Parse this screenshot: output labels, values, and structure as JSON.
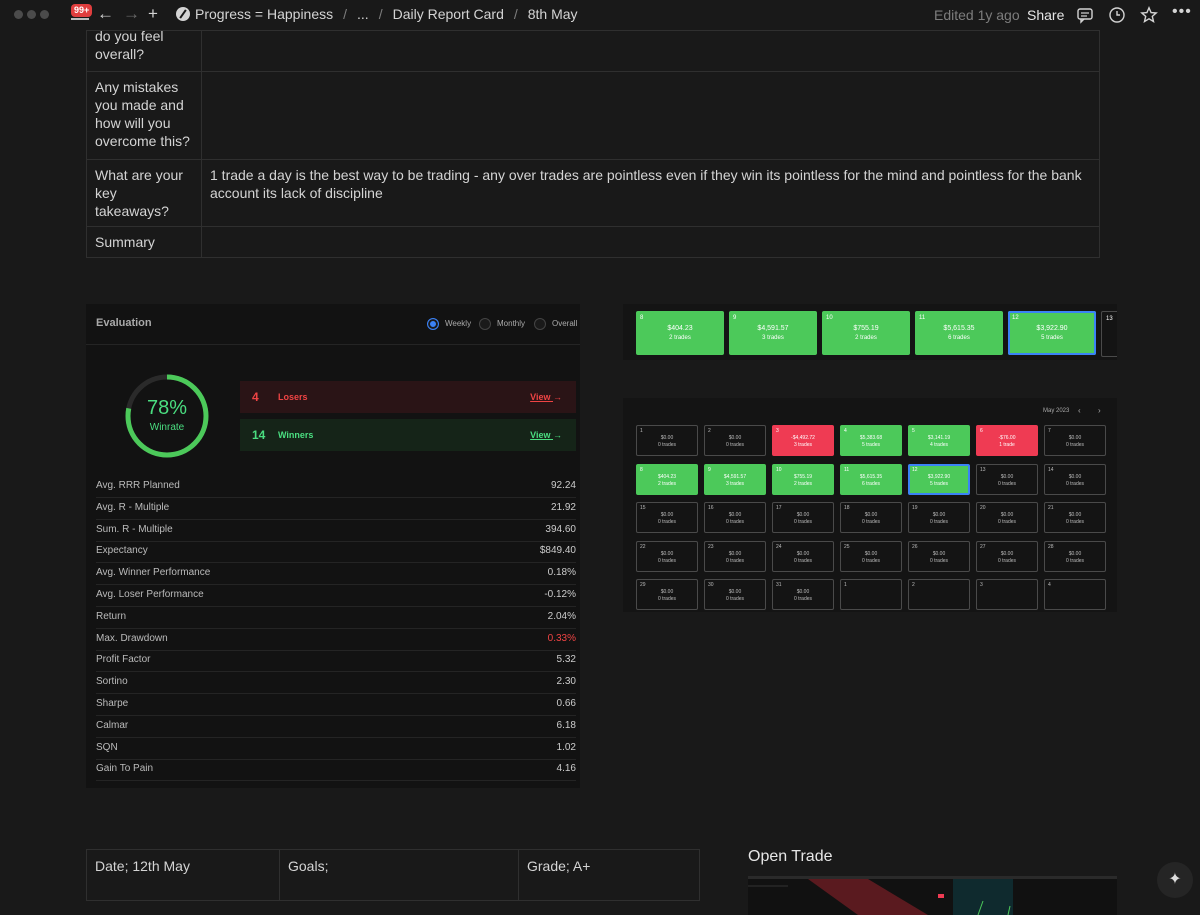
{
  "topbar": {
    "badge": "99+",
    "breadcrumbs": [
      "Progress = Happiness",
      "...",
      "Daily Report Card",
      "8th May"
    ],
    "edited": "Edited 1y ago",
    "share": "Share"
  },
  "report_rows": [
    {
      "q": "do you feel overall?",
      "a": ""
    },
    {
      "q": "Any mistakes you made and how will you overcome this?",
      "a": ""
    },
    {
      "q": "What are your key takeaways?",
      "a": "1 trade a day is the best way to be trading - any over trades are pointless even if they win its pointless for the mind and pointless for the bank account its lack of discipline"
    },
    {
      "q": "Summary",
      "a": ""
    }
  ],
  "evaluation": {
    "title": "Evaluation",
    "periods": [
      "Weekly",
      "Monthly",
      "Overall"
    ],
    "selected_period": "Weekly",
    "winrate_pct": "78%",
    "winrate_value": 0.78,
    "winrate_label": "Winrate",
    "losers": {
      "count": "4",
      "label": "Losers",
      "link": "View"
    },
    "winners": {
      "count": "14",
      "label": "Winners",
      "link": "View"
    },
    "metrics": [
      {
        "label": "Avg. RRR Planned",
        "value": "92.24"
      },
      {
        "label": "Avg. R - Multiple",
        "value": "21.92"
      },
      {
        "label": "Sum. R - Multiple",
        "value": "394.60"
      },
      {
        "label": "Expectancy",
        "value": "$849.40"
      },
      {
        "label": "Avg. Winner Performance",
        "value": "0.18%"
      },
      {
        "label": "Avg. Loser Performance",
        "value": "-0.12%"
      },
      {
        "label": "Return",
        "value": "2.04%"
      },
      {
        "label": "Max. Drawdown",
        "value": "0.33%",
        "color": "#ef4444"
      },
      {
        "label": "Profit Factor",
        "value": "5.32"
      },
      {
        "label": "Sortino",
        "value": "2.30"
      },
      {
        "label": "Sharpe",
        "value": "0.66"
      },
      {
        "label": "Calmar",
        "value": "6.18"
      },
      {
        "label": "SQN",
        "value": "1.02"
      },
      {
        "label": "Gain To Pain",
        "value": "4.16"
      }
    ]
  },
  "week_strip": [
    {
      "day": "8",
      "amount": "$404.23",
      "trades": "2 trades"
    },
    {
      "day": "9",
      "amount": "$4,591.57",
      "trades": "3 trades"
    },
    {
      "day": "10",
      "amount": "$755.19",
      "trades": "2 trades"
    },
    {
      "day": "11",
      "amount": "$5,615.35",
      "trades": "6 trades"
    },
    {
      "day": "12",
      "amount": "$3,922.90",
      "trades": "5 trades",
      "selected": true
    },
    {
      "day": "13",
      "amount": "",
      "trades": ""
    }
  ],
  "calendar": {
    "month": "May 2023",
    "cells": [
      {
        "day": "1",
        "amount": "$0.00",
        "trades": "0 trades",
        "kind": "empty"
      },
      {
        "day": "2",
        "amount": "$0.00",
        "trades": "0 trades",
        "kind": "empty"
      },
      {
        "day": "3",
        "amount": "-$4,492.72",
        "trades": "3 trades",
        "kind": "red"
      },
      {
        "day": "4",
        "amount": "$5,383.68",
        "trades": "5 trades",
        "kind": "green"
      },
      {
        "day": "5",
        "amount": "$3,141.19",
        "trades": "4 trades",
        "kind": "green"
      },
      {
        "day": "6",
        "amount": "-$76.00",
        "trades": "1 trade",
        "kind": "red"
      },
      {
        "day": "7",
        "amount": "$0.00",
        "trades": "0 trades",
        "kind": "empty"
      },
      {
        "day": "8",
        "amount": "$404.23",
        "trades": "2 trades",
        "kind": "green"
      },
      {
        "day": "9",
        "amount": "$4,591.57",
        "trades": "3 trades",
        "kind": "green"
      },
      {
        "day": "10",
        "amount": "$755.19",
        "trades": "2 trades",
        "kind": "green"
      },
      {
        "day": "11",
        "amount": "$5,615.35",
        "trades": "6 trades",
        "kind": "green"
      },
      {
        "day": "12",
        "amount": "$3,922.90",
        "trades": "5 trades",
        "kind": "green-sel"
      },
      {
        "day": "13",
        "amount": "$0.00",
        "trades": "0 trades",
        "kind": "empty"
      },
      {
        "day": "14",
        "amount": "$0.00",
        "trades": "0 trades",
        "kind": "empty"
      },
      {
        "day": "15",
        "amount": "$0.00",
        "trades": "0 trades",
        "kind": "empty"
      },
      {
        "day": "16",
        "amount": "$0.00",
        "trades": "0 trades",
        "kind": "empty"
      },
      {
        "day": "17",
        "amount": "$0.00",
        "trades": "0 trades",
        "kind": "empty"
      },
      {
        "day": "18",
        "amount": "$0.00",
        "trades": "0 trades",
        "kind": "empty"
      },
      {
        "day": "19",
        "amount": "$0.00",
        "trades": "0 trades",
        "kind": "empty"
      },
      {
        "day": "20",
        "amount": "$0.00",
        "trades": "0 trades",
        "kind": "empty"
      },
      {
        "day": "21",
        "amount": "$0.00",
        "trades": "0 trades",
        "kind": "empty"
      },
      {
        "day": "22",
        "amount": "$0.00",
        "trades": "0 trades",
        "kind": "empty"
      },
      {
        "day": "23",
        "amount": "$0.00",
        "trades": "0 trades",
        "kind": "empty"
      },
      {
        "day": "24",
        "amount": "$0.00",
        "trades": "0 trades",
        "kind": "empty"
      },
      {
        "day": "25",
        "amount": "$0.00",
        "trades": "0 trades",
        "kind": "empty"
      },
      {
        "day": "26",
        "amount": "$0.00",
        "trades": "0 trades",
        "kind": "empty"
      },
      {
        "day": "27",
        "amount": "$0.00",
        "trades": "0 trades",
        "kind": "empty"
      },
      {
        "day": "28",
        "amount": "$0.00",
        "trades": "0 trades",
        "kind": "empty"
      },
      {
        "day": "29",
        "amount": "$0.00",
        "trades": "0 trades",
        "kind": "empty"
      },
      {
        "day": "30",
        "amount": "$0.00",
        "trades": "0 trades",
        "kind": "empty"
      },
      {
        "day": "31",
        "amount": "$0.00",
        "trades": "0 trades",
        "kind": "empty"
      },
      {
        "day": "1",
        "amount": "",
        "trades": "",
        "kind": "empty"
      },
      {
        "day": "2",
        "amount": "",
        "trades": "",
        "kind": "empty"
      },
      {
        "day": "3",
        "amount": "",
        "trades": "",
        "kind": "empty"
      },
      {
        "day": "4",
        "amount": "",
        "trades": "",
        "kind": "empty"
      }
    ]
  },
  "bottom_table": {
    "cells": [
      "Date; 12th May",
      "Goals;",
      "Grade; A+"
    ]
  },
  "open_trade": {
    "title": "Open Trade"
  },
  "colors": {
    "green": "#4cc95a",
    "red": "#ef3b53",
    "accent": "#3b82f6",
    "bg": "#191919"
  }
}
